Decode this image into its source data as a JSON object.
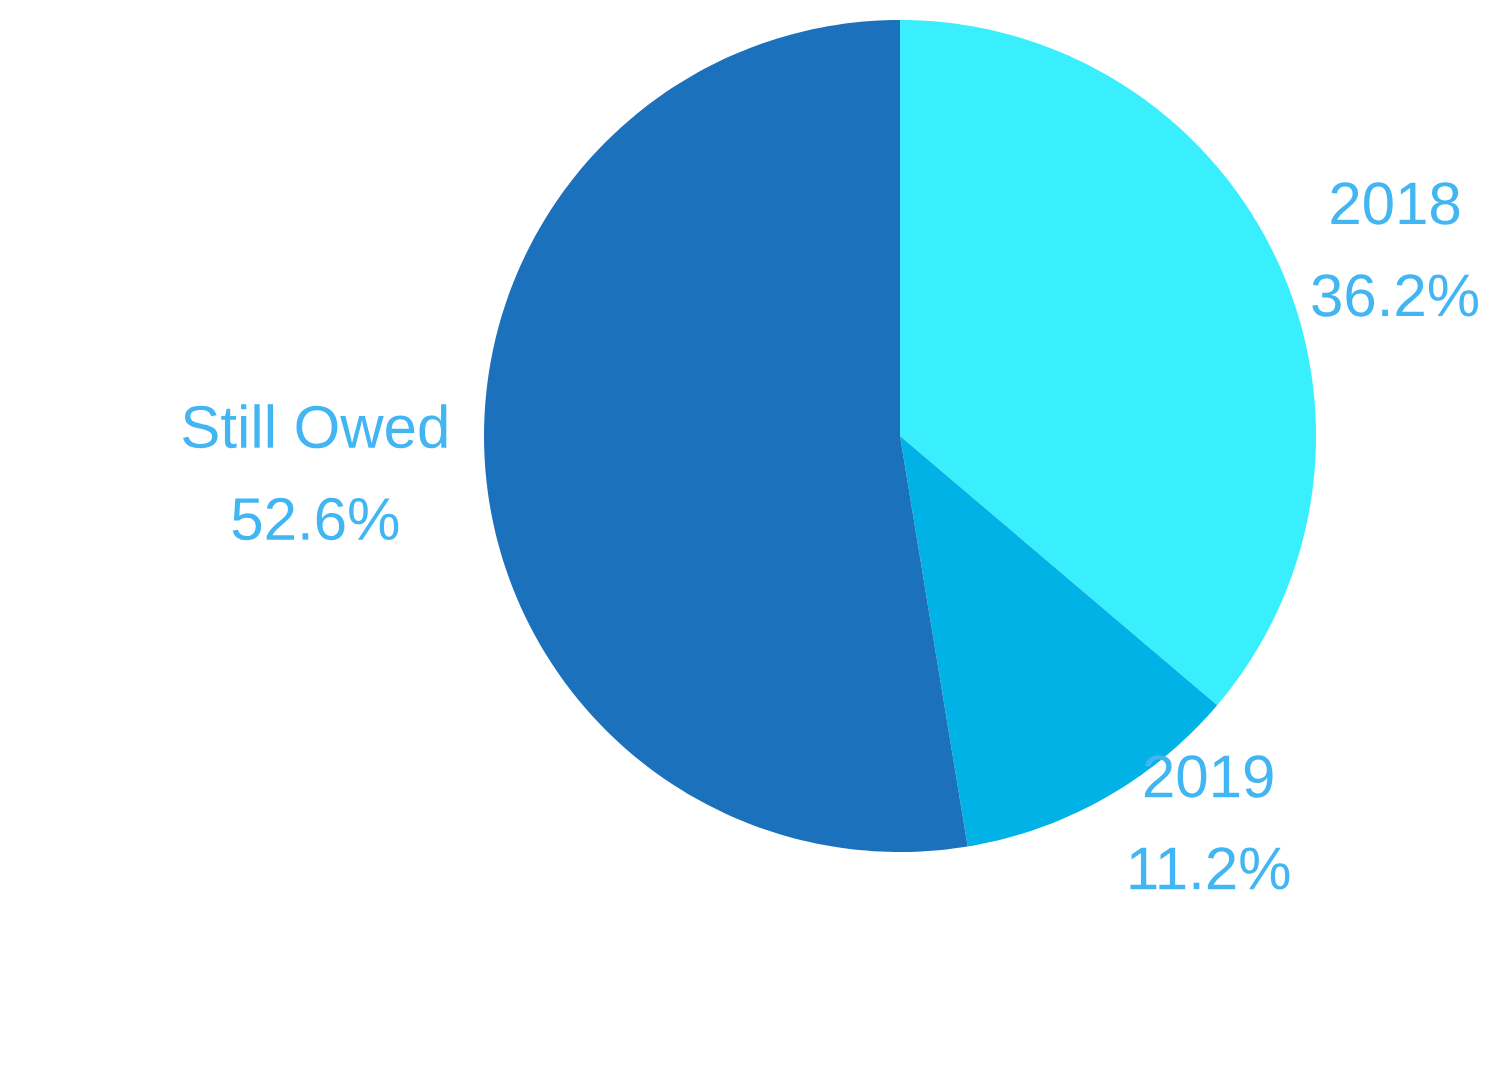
{
  "chart_data": {
    "type": "pie",
    "categories": [
      "2018",
      "2019",
      "Still Owed"
    ],
    "values": [
      36.2,
      11.2,
      52.6
    ],
    "value_labels": [
      "36.2%",
      "11.2%",
      "52.6%"
    ],
    "colors": [
      "#3aeffd",
      "#00b2e5",
      "#1c71bd"
    ]
  }
}
